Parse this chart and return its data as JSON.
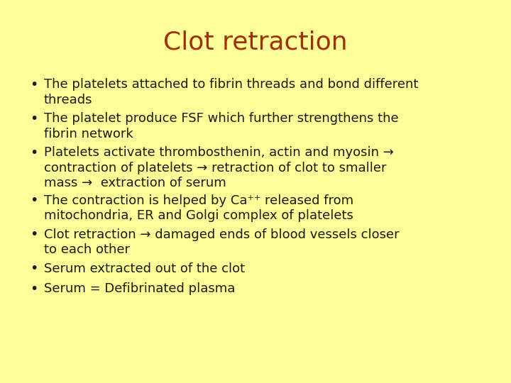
{
  "title": "Clot retraction",
  "title_color": "#A03000",
  "title_fontsize": 26,
  "background_color": "#FFFF99",
  "bullet_color": "#1a1a00",
  "bullet_fontsize": 13.0,
  "bullets": [
    "The platelets attached to fibrin threads and bond different\nthreads",
    "The platelet produce FSF which further strengthens the\nfibrin network",
    "Platelets activate thrombosthenin, actin and myosin →\ncontraction of platelets → retraction of clot to smaller\nmass →  extraction of serum",
    "The contraction is helped by Ca⁺⁺ released from\nmitochondria, ER and Golgi complex of platelets",
    "Clot retraction → damaged ends of blood vessels closer\nto each other",
    "Serum extracted out of the clot",
    "Serum = Defibrinated plasma"
  ],
  "bullet_lines": [
    2,
    2,
    3,
    2,
    2,
    1,
    1
  ]
}
